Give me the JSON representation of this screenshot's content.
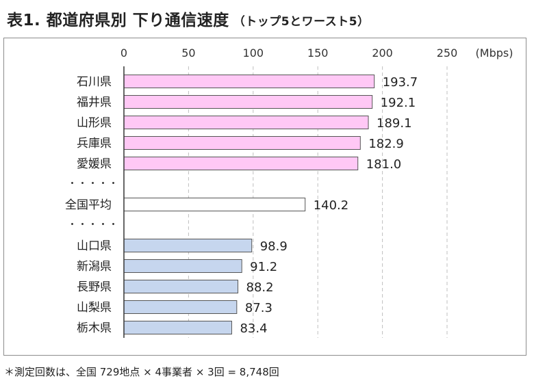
{
  "title": {
    "main": "表1. 都道府県別 下り通信速度",
    "sub": "（トップ5とワースト5）"
  },
  "footnote": "＊測定回数は、全国 729地点 × 4事業者 × 3回 = 8,748回",
  "chart_data": {
    "type": "bar",
    "orientation": "horizontal",
    "title": "表1. 都道府県別 下り通信速度",
    "unit_label": "(Mbps)",
    "xlim": [
      0,
      250
    ],
    "ticks": [
      0,
      50,
      100,
      150,
      200,
      250
    ],
    "grid": "vertical-dashed",
    "separator": "・・・・・",
    "categories": [
      "石川県",
      "福井県",
      "山形県",
      "兵庫県",
      "愛媛県",
      "全国平均",
      "山口県",
      "新潟県",
      "長野県",
      "山梨県",
      "栃木県"
    ],
    "values": [
      193.7,
      192.1,
      189.1,
      182.9,
      181.0,
      140.2,
      98.9,
      91.2,
      88.2,
      87.3,
      83.4
    ],
    "value_labels": [
      "193.7",
      "192.1",
      "189.1",
      "182.9",
      "181.0",
      "140.2",
      "98.9",
      "91.2",
      "88.2",
      "87.3",
      "83.4"
    ],
    "groups": [
      "top",
      "top",
      "top",
      "top",
      "top",
      "average",
      "bottom",
      "bottom",
      "bottom",
      "bottom",
      "bottom"
    ],
    "colors": {
      "top": "#ffc8f5",
      "average": "#ffffff",
      "bottom": "#c6d6ee",
      "bar_border": "#555555",
      "grid": "#bfbfbf"
    }
  }
}
